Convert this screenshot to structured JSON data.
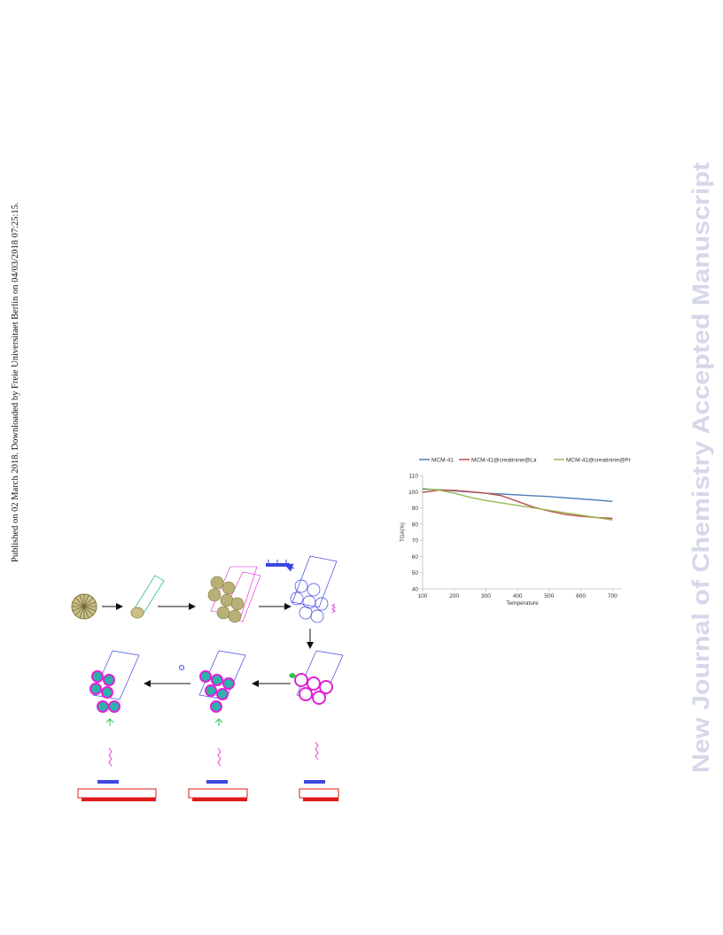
{
  "side_note": "Published on 02 March 2018. Downloaded by Freie Universitaet Berlin on 04/03/2018 07:25:15.",
  "watermark": "New Journal of Chemistry Accepted Manuscript",
  "colors": {
    "watermark": "#d4d8e8",
    "mcm41": "#4a7ebb",
    "la": "#be4b48",
    "pr": "#98b954",
    "scheme_blue": "#3c46e0",
    "scheme_magenta": "#e020d8",
    "scheme_red": "#e01a1a",
    "scheme_olive": "#b9b078",
    "scheme_green": "#2cc24a",
    "scheme_teal": "#2ab3a8"
  },
  "chart_data": {
    "type": "line",
    "xlabel": "Temperature",
    "ylabel": "TGA(%)",
    "xlim": [
      100,
      730
    ],
    "ylim": [
      40,
      110
    ],
    "xticks": [
      100,
      200,
      300,
      400,
      500,
      600,
      700
    ],
    "yticks": [
      40,
      50,
      60,
      70,
      80,
      90,
      100,
      110
    ],
    "legend": "top",
    "grid": false,
    "series": [
      {
        "name": "MCM-41",
        "color": "#4a7ebb",
        "x": [
          100,
          150,
          200,
          250,
          300,
          350,
          400,
          450,
          500,
          550,
          600,
          650,
          700
        ],
        "y": [
          101.5,
          101.2,
          100.5,
          99.8,
          99.0,
          98.5,
          98.0,
          97.5,
          97.0,
          96.2,
          95.5,
          94.8,
          94.0
        ]
      },
      {
        "name": "MCM-41@creatinine@La",
        "color": "#be4b48",
        "x": [
          100,
          150,
          200,
          250,
          300,
          350,
          400,
          450,
          500,
          550,
          600,
          650,
          700
        ],
        "y": [
          99.5,
          101.0,
          100.8,
          100.0,
          99.0,
          97.5,
          94.0,
          90.5,
          88.0,
          86.0,
          84.8,
          84.0,
          83.5
        ]
      },
      {
        "name": "MCM-41@creatinine@Pr",
        "color": "#98b954",
        "x": [
          100,
          150,
          200,
          250,
          300,
          350,
          400,
          450,
          500,
          550,
          600,
          650,
          700
        ],
        "y": [
          102.0,
          101.0,
          99.0,
          96.5,
          94.5,
          93.0,
          91.5,
          90.0,
          88.5,
          87.0,
          85.5,
          84.0,
          82.5
        ]
      }
    ]
  }
}
